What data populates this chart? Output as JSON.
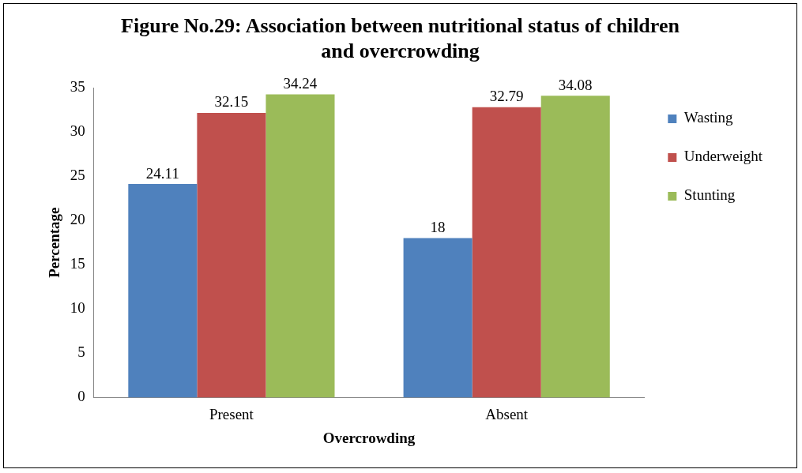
{
  "chart_data": {
    "type": "bar",
    "title": "Figure No.29: Association between  nutritional status of children and overcrowding",
    "xlabel": "Overcrowding",
    "ylabel": "Percentage",
    "categories": [
      "Present",
      "Absent"
    ],
    "series": [
      {
        "name": "Wasting",
        "color": "#4f81bd",
        "values": [
          24.11,
          18
        ]
      },
      {
        "name": "Underweight",
        "color": "#c0504d",
        "values": [
          32.15,
          32.79
        ]
      },
      {
        "name": "Stunting",
        "color": "#9bbb59",
        "values": [
          34.24,
          34.08
        ]
      }
    ],
    "ylim": [
      0,
      35
    ],
    "yticks": [
      0,
      5,
      10,
      15,
      20,
      25,
      30,
      35
    ],
    "grid": false,
    "legend": "right",
    "data_labels": true
  }
}
